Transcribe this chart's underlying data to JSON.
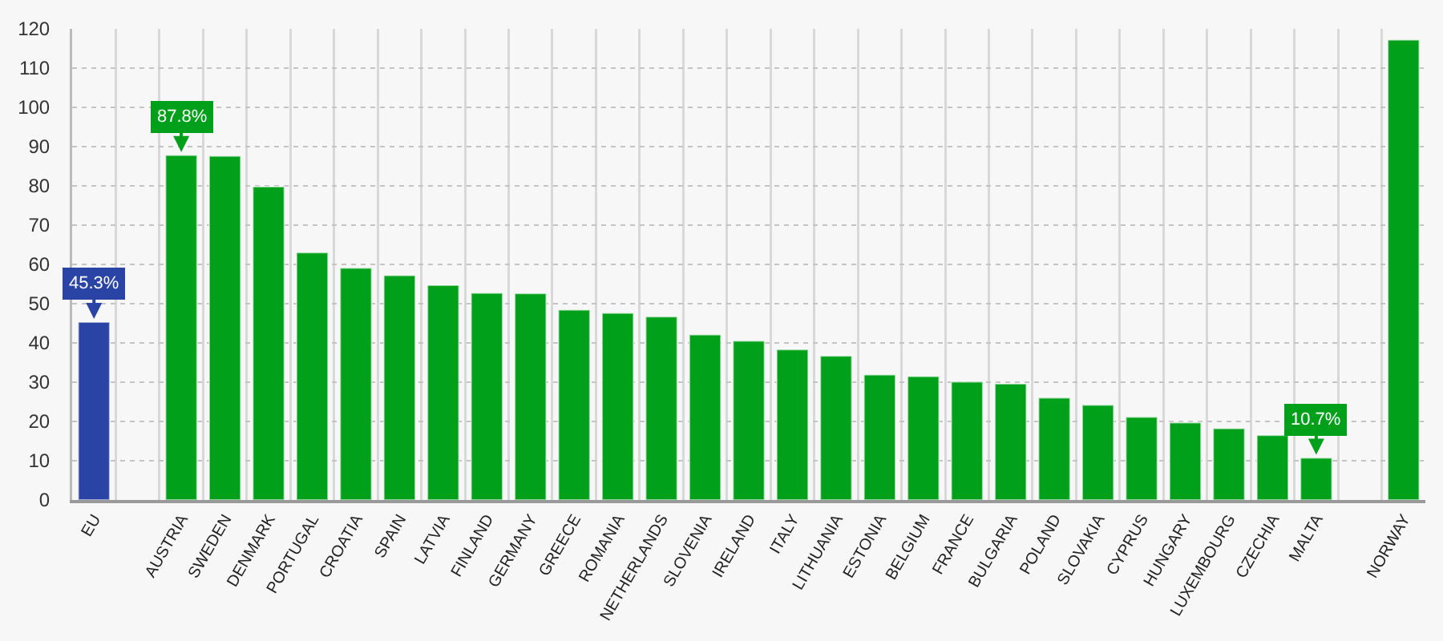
{
  "chart_data": {
    "type": "bar",
    "categories": [
      "EU",
      null,
      "AUSTRIA",
      "SWEDEN",
      "DENMARK",
      "PORTUGAL",
      "CROATIA",
      "SPAIN",
      "LATVIA",
      "FINLAND",
      "GERMANY",
      "GREECE",
      "ROMANIA",
      "NETHERLANDS",
      "SLOVENIA",
      "IRELAND",
      "ITALY",
      "LITHUANIA",
      "ESTONIA",
      "BELGIUM",
      "FRANCE",
      "BULGARIA",
      "POLAND",
      "SLOVAKIA",
      "CYPRUS",
      "HUNGARY",
      "LUXEMBOURG",
      "CZECHIA",
      "MALTA",
      null,
      "NORWAY"
    ],
    "values": [
      45.3,
      null,
      87.8,
      87.6,
      79.8,
      63.0,
      59.1,
      57.2,
      54.7,
      52.7,
      52.6,
      48.4,
      47.6,
      46.7,
      42.1,
      40.5,
      38.3,
      36.7,
      31.9,
      31.5,
      30.1,
      29.6,
      26.0,
      24.2,
      21.1,
      19.7,
      18.2,
      16.5,
      10.7,
      null,
      117.2
    ],
    "colors": [
      "#2a44a6",
      "#00a01a",
      "#00a01a",
      "#00a01a",
      "#00a01a",
      "#00a01a",
      "#00a01a",
      "#00a01a",
      "#00a01a",
      "#00a01a",
      "#00a01a",
      "#00a01a",
      "#00a01a",
      "#00a01a",
      "#00a01a",
      "#00a01a",
      "#00a01a",
      "#00a01a",
      "#00a01a",
      "#00a01a",
      "#00a01a",
      "#00a01a",
      "#00a01a",
      "#00a01a",
      "#00a01a",
      "#00a01a",
      "#00a01a",
      "#00a01a",
      "#00a01a",
      "#00a01a",
      "#00a01a"
    ],
    "value_labels": [
      "45.3%",
      null,
      "87.8%",
      null,
      null,
      null,
      null,
      null,
      null,
      null,
      null,
      null,
      null,
      null,
      null,
      null,
      null,
      null,
      null,
      null,
      null,
      null,
      null,
      null,
      null,
      null,
      null,
      null,
      "10.7%",
      null,
      null
    ],
    "ylim": [
      0,
      120
    ],
    "yticks": [
      0,
      10,
      20,
      30,
      40,
      50,
      60,
      70,
      80,
      90,
      100,
      110,
      120
    ],
    "grid": true
  }
}
